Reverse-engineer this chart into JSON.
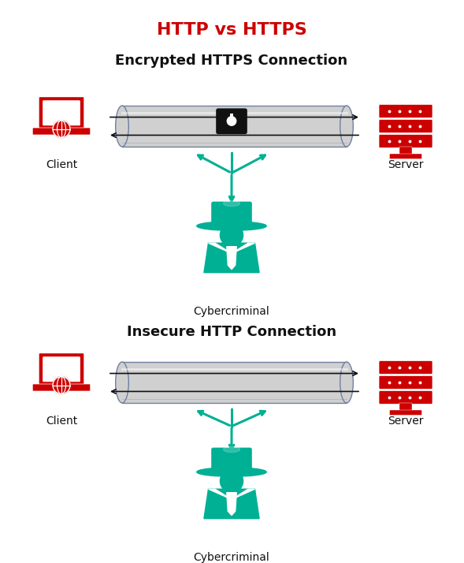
{
  "title": "HTTP vs HTTPS",
  "title_color": "#CC0000",
  "title_fontsize": 16,
  "section1_title": "Encrypted HTTPS Connection",
  "section2_title": "Insecure HTTP Connection",
  "section_title_fontsize": 13,
  "label_fontsize": 10,
  "red_color": "#CC0000",
  "teal_color": "#00B094",
  "dark_color": "#111111",
  "tube_color": "#D0D0D0",
  "tube_edge_color": "#7080A0",
  "bg_color": "#FFFFFF",
  "client_label": "Client",
  "server_label": "Server",
  "cybercriminal_label": "Cybercriminal",
  "s1y": 0.73,
  "s2y": 0.27
}
